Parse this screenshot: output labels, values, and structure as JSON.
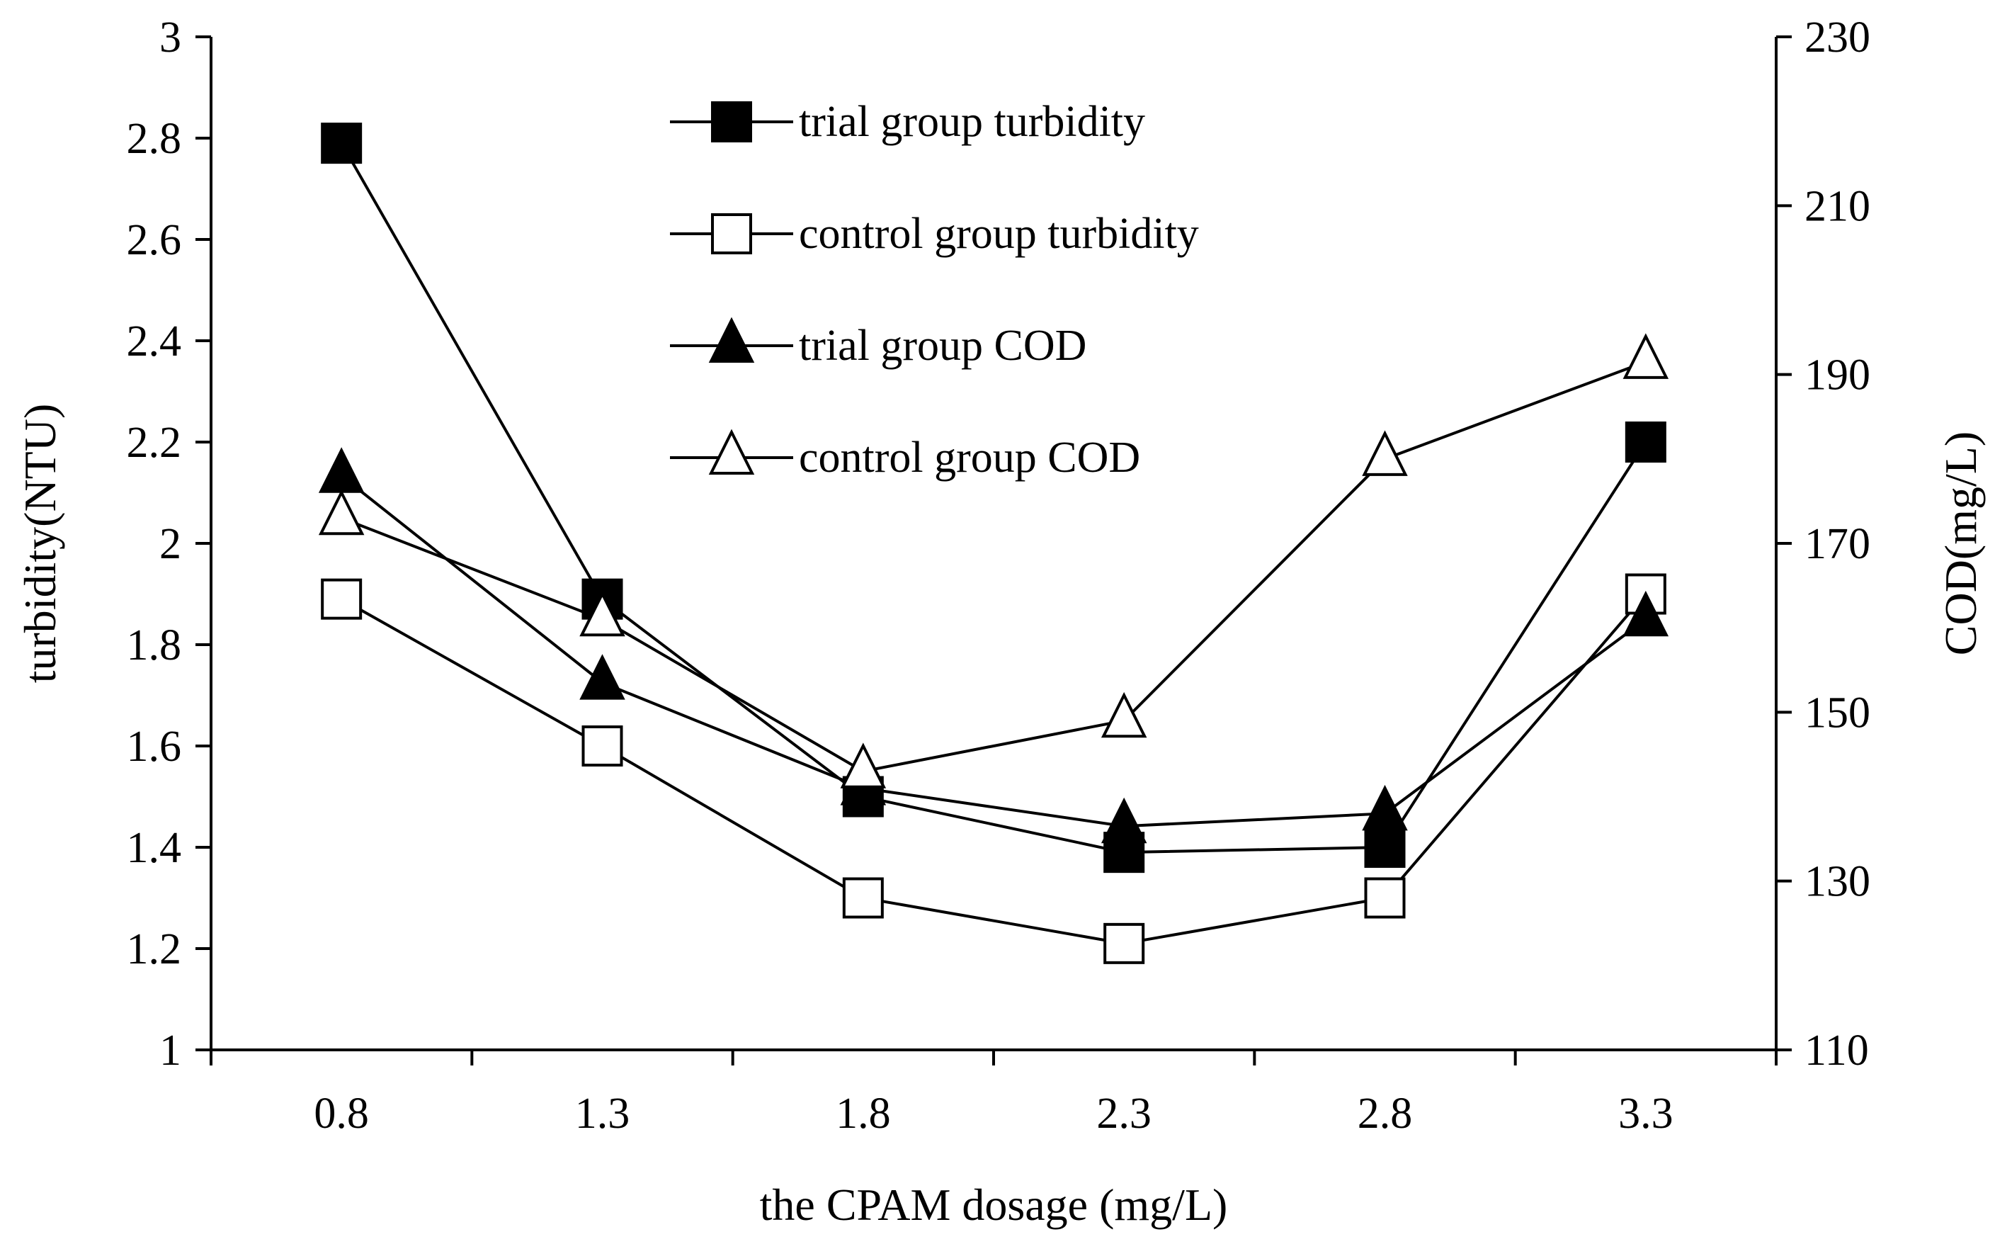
{
  "chart_data": {
    "type": "line",
    "title": "",
    "xlabel": "the CPAM dosage (mg/L)",
    "ylabel_left": "turbidity(NTU)",
    "ylabel_right": "COD(mg/L)",
    "categories": [
      "0.8",
      "1.3",
      "1.8",
      "2.3",
      "2.8",
      "3.3"
    ],
    "y_left": {
      "min": 1,
      "max": 3,
      "ticks": [
        "1",
        "1.2",
        "1.4",
        "1.6",
        "1.8",
        "2",
        "2.2",
        "2.4",
        "2.6",
        "2.8",
        "3"
      ]
    },
    "y_right": {
      "min": 110,
      "max": 230,
      "ticks": [
        "110",
        "130",
        "150",
        "170",
        "190",
        "210",
        "230"
      ]
    },
    "grid": false,
    "legend_position": "top-center",
    "series": [
      {
        "name": "trial group turbidity",
        "axis": "left",
        "marker": "filled-square",
        "values": [
          2.79,
          1.89,
          1.5,
          1.39,
          1.4,
          2.2
        ]
      },
      {
        "name": "control group turbidity",
        "axis": "left",
        "marker": "open-square",
        "values": [
          1.89,
          1.6,
          1.3,
          1.21,
          1.3,
          1.9
        ]
      },
      {
        "name": "trial group COD",
        "axis": "right",
        "marker": "filled-triangle",
        "values": [
          178,
          153.5,
          141,
          136.5,
          138,
          161
        ]
      },
      {
        "name": "control group COD",
        "axis": "right",
        "marker": "open-triangle",
        "values": [
          173,
          161,
          143,
          149,
          180,
          191.5
        ]
      }
    ],
    "colors": {
      "line": "#000000",
      "background": "#ffffff"
    }
  }
}
